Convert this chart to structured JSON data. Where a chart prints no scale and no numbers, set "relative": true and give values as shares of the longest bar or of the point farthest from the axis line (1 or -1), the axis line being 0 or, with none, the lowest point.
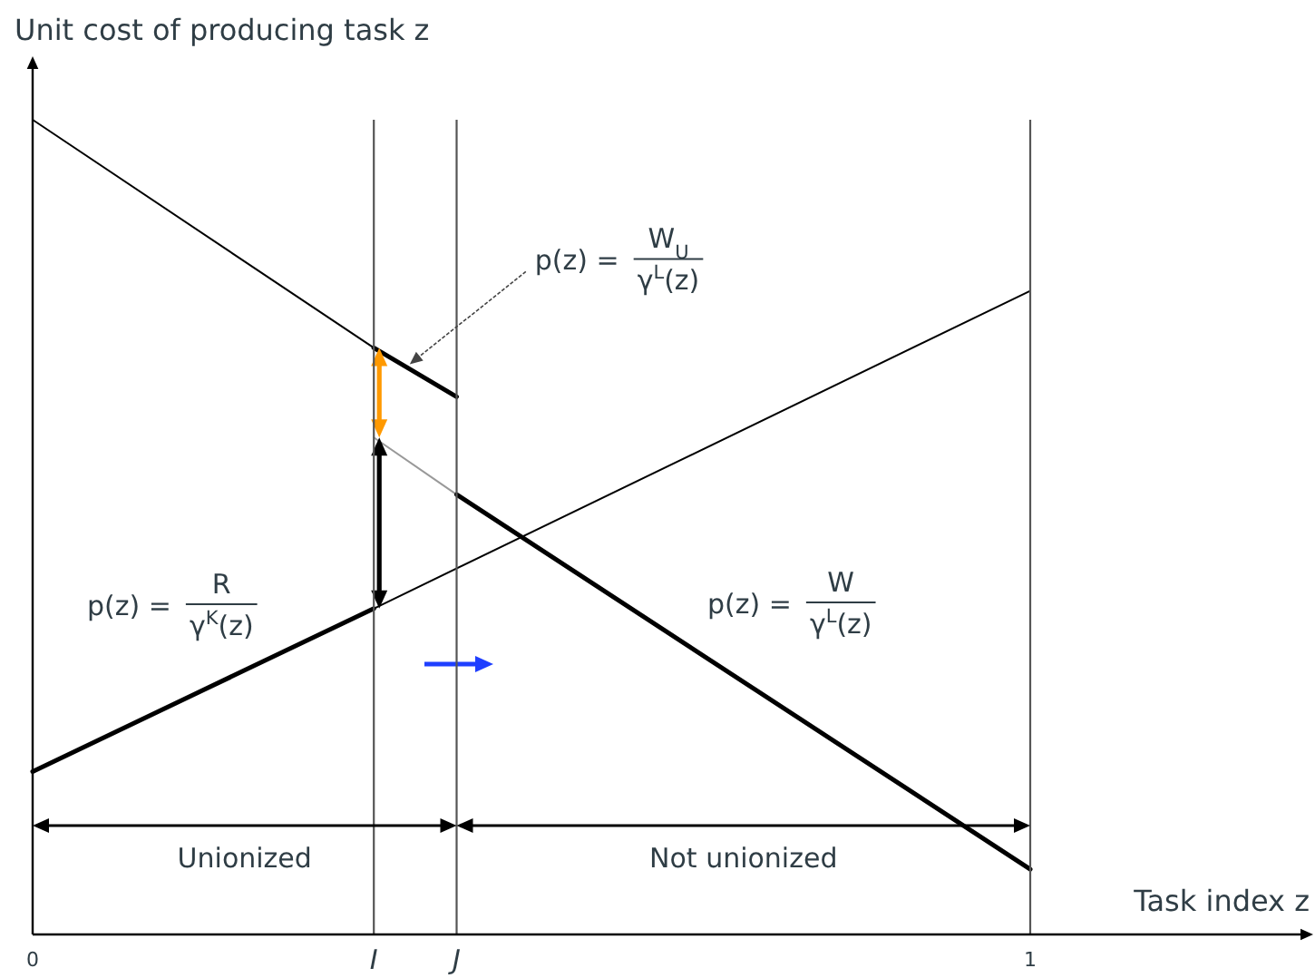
{
  "chart_data": {
    "type": "line",
    "relative": true,
    "xlabel": "Task index z",
    "ylabel": "Unit cost of producing task z",
    "xlim": [
      0,
      1.28
    ],
    "xticks": [
      0,
      {
        "value": 0.342,
        "label": "I"
      },
      {
        "value": 0.425,
        "label": "J"
      },
      1
    ],
    "series": [
      {
        "x": [
          0,
          0.342
        ],
        "values": [
          1,
          0.72
        ],
        "color": "#000000"
      },
      {
        "x": [
          0.342,
          0.425
        ],
        "values": [
          0.72,
          0.66
        ],
        "color": "#000000"
      },
      {
        "x": [
          0.342,
          0.425
        ],
        "values": [
          0.61,
          0.54
        ],
        "color": "#999999"
      },
      {
        "x": [
          0.425,
          1
        ],
        "values": [
          0.54,
          0.08
        ],
        "color": "#000000"
      },
      {
        "x": [
          0,
          0.342
        ],
        "values": [
          0.2,
          0.4
        ],
        "color": "#000000"
      },
      {
        "x": [
          0.342,
          1
        ],
        "values": [
          0.4,
          0.79
        ],
        "color": "#000000"
      }
    ],
    "ref_lines": [
      {
        "axis": "x",
        "value": 0.342,
        "color": "#555555"
      },
      {
        "axis": "x",
        "value": 0.425,
        "color": "#555555"
      },
      {
        "axis": "x",
        "value": 1,
        "color": "#555555"
      }
    ],
    "annotations": [
      {
        "text": "p(z) =",
        "x": 0.378,
        "y": 0.7
      },
      "W$_{U}$",
      "γ$^{L}$(z)",
      "p(z) =",
      "R",
      "γ$^{K}$(z)",
      "p(z) =",
      "W",
      "γ$^{L}$(z)",
      "Unionized",
      "Not unionized"
    ]
  }
}
